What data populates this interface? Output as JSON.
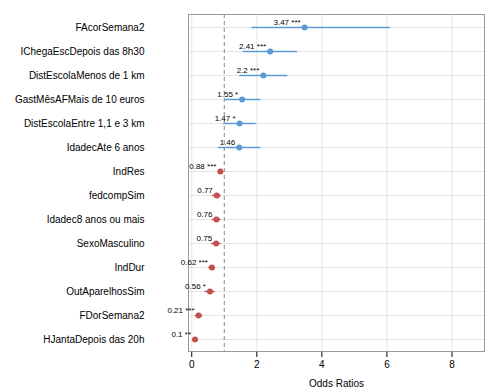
{
  "chart_data": {
    "type": "forest",
    "categories": [
      "FAcorSemana2",
      "IChegaEscDepois das 8h30",
      "DistEscolaMenos de 1 km",
      "GastMêsAFMais de 10 euros",
      "DistEscolaEntre 1,1 e 3 km",
      "IdadecAte 6 anos",
      "IndRes",
      "fedcompSim",
      "Idadec8 anos ou mais",
      "SexoMasculino",
      "IndDur",
      "OutAparelhosSim",
      "FDorSemana2",
      "HJantaDepois das 20h"
    ],
    "values": [
      3.47,
      2.41,
      2.2,
      1.55,
      1.47,
      1.46,
      0.88,
      0.77,
      0.76,
      0.75,
      0.62,
      0.56,
      0.21,
      0.1
    ],
    "ci_lower": [
      1.85,
      1.58,
      1.48,
      1.02,
      0.98,
      0.82,
      0.82,
      0.64,
      0.63,
      0.61,
      0.52,
      0.41,
      0.11,
      0.035
    ],
    "ci_upper": [
      6.1,
      3.25,
      2.95,
      2.12,
      1.98,
      2.12,
      0.94,
      0.91,
      0.9,
      0.9,
      0.73,
      0.72,
      0.34,
      0.19
    ],
    "value_labels": [
      "3.47 ***",
      "2.41 ***",
      "2.2 ***",
      "1.55 *",
      "1.47 *",
      "1.46",
      "0.88 ***",
      "0.77",
      "0.76",
      "0.75",
      "0.62 ***",
      "0.56 *",
      "0.21 ***",
      "0.1 **"
    ],
    "data_labels": true,
    "colors": [
      "#5b9bd5",
      "#5b9bd5",
      "#5b9bd5",
      "#5b9bd5",
      "#5b9bd5",
      "#5b9bd5",
      "#c0504d",
      "#c0504d",
      "#c0504d",
      "#c0504d",
      "#c0504d",
      "#c0504d",
      "#c0504d",
      "#c0504d"
    ],
    "ref_line": 1.0,
    "xlim": [
      -0.1,
      9.0
    ],
    "xticks": [
      0,
      2,
      4,
      6,
      8
    ],
    "xlabel": "Odds Ratios",
    "grid": true
  }
}
